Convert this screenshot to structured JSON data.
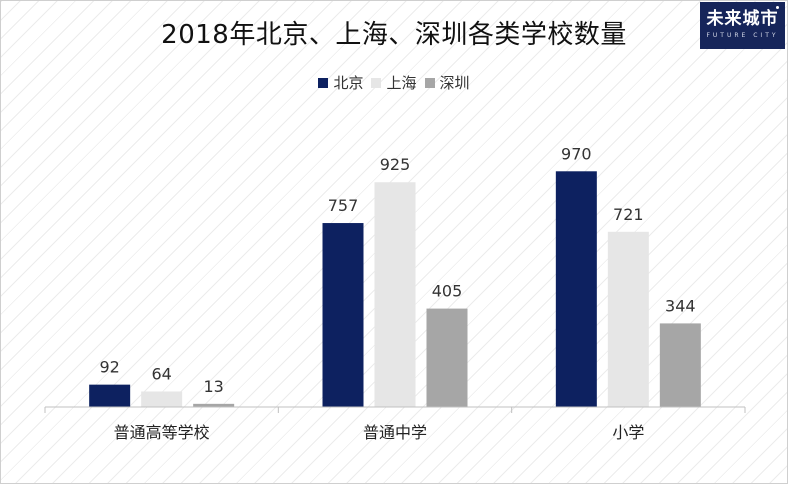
{
  "logo": {
    "text": "未来城市",
    "sub": "FUTURE CITY"
  },
  "chart_data": {
    "type": "bar",
    "title": "2018年北京、上海、深圳各类学校数量",
    "categories": [
      "普通高等学校",
      "普通中学",
      "小学"
    ],
    "series": [
      {
        "name": "北京",
        "color": "#0d2160",
        "values": [
          92,
          757,
          970
        ]
      },
      {
        "name": "上海",
        "color": "#e6e6e6",
        "values": [
          64,
          925,
          721
        ]
      },
      {
        "name": "深圳",
        "color": "#a6a6a6",
        "values": [
          13,
          405,
          344
        ]
      }
    ],
    "ylim": [
      0,
      1000
    ],
    "legend_position": "top-center",
    "data_labels": true,
    "grid": false
  }
}
